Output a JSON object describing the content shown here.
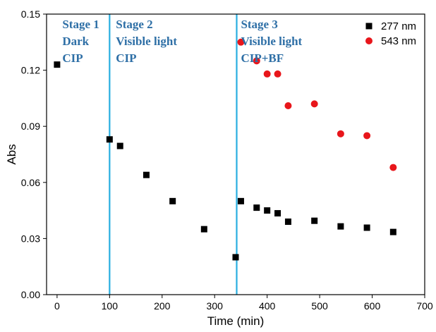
{
  "chart_data": {
    "type": "scatter",
    "xlabel": "Time (min)",
    "ylabel": "Abs",
    "xlim": [
      -20,
      700
    ],
    "ylim": [
      0,
      0.15
    ],
    "x_ticks": [
      0,
      100,
      200,
      300,
      400,
      500,
      600,
      700
    ],
    "x_tick_labels": [
      "0",
      "100",
      "200",
      "300",
      "400",
      "500",
      "600",
      "700"
    ],
    "y_ticks": [
      0,
      0.03,
      0.06,
      0.09,
      0.12,
      0.15
    ],
    "y_tick_labels": [
      "0.00",
      "0.03",
      "0.06",
      "0.09",
      "0.12",
      "0.15"
    ],
    "grid": false,
    "legend_position": "top-right",
    "series": [
      {
        "name": "277 nm",
        "marker": "square",
        "color": "#000000",
        "x": [
          0,
          100,
          120,
          170,
          220,
          280,
          340,
          350,
          380,
          400,
          420,
          440,
          490,
          540,
          590,
          640
        ],
        "y": [
          0.123,
          0.083,
          0.0795,
          0.064,
          0.05,
          0.035,
          0.02,
          0.05,
          0.0465,
          0.045,
          0.0435,
          0.039,
          0.0395,
          0.0365,
          0.0358,
          0.0335
        ]
      },
      {
        "name": "543 nm",
        "marker": "circle",
        "color": "#e8161b",
        "x": [
          350,
          380,
          400,
          420,
          440,
          490,
          540,
          590,
          640
        ],
        "y": [
          0.135,
          0.125,
          0.118,
          0.118,
          0.101,
          0.102,
          0.086,
          0.085,
          0.068
        ]
      }
    ],
    "stage_dividers": {
      "x": [
        100,
        342
      ],
      "color": "#29aee0"
    },
    "stages": [
      {
        "x": 10,
        "lines": [
          "Stage 1",
          "Dark",
          "CIP"
        ]
      },
      {
        "x": 112,
        "lines": [
          "Stage 2",
          "Visible light",
          "CIP"
        ]
      },
      {
        "x": 350,
        "lines": [
          "Stage 3",
          "Visible light",
          "CIP+BF"
        ]
      }
    ]
  }
}
